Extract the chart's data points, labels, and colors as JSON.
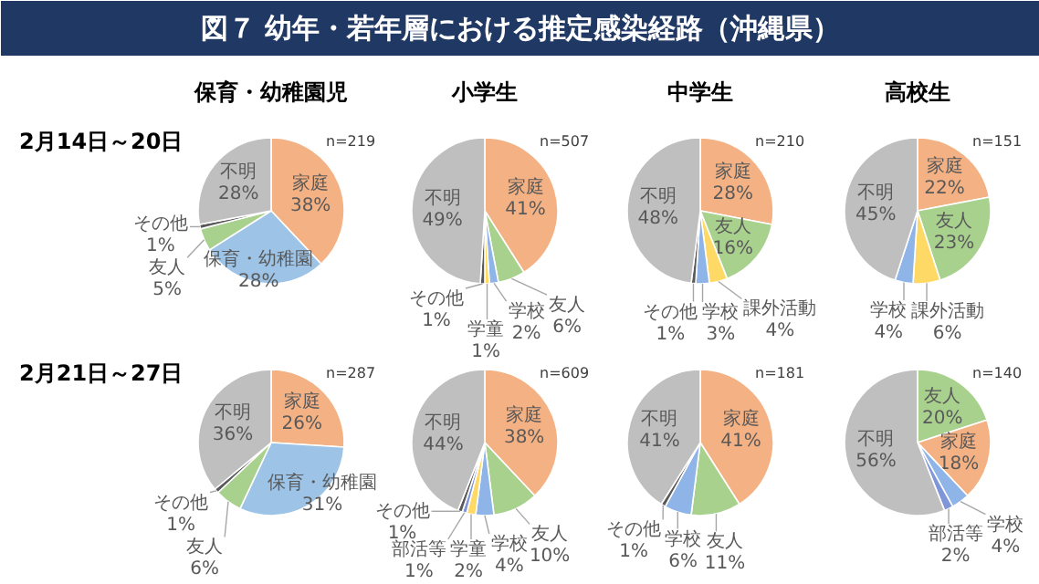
{
  "chart_data": [
    {
      "type": "other",
      "title": "図７ 幼年・若年層における推定感染経路（沖縄県）"
    },
    {
      "type": "pie",
      "title": "保育・幼稚園児",
      "subtitle": "2月14日～20日",
      "annotations": [
        "n=219"
      ],
      "categories": [
        "家庭",
        "保育・幼稚園",
        "友人",
        "その他",
        "不明"
      ],
      "values": [
        38,
        28,
        5,
        1,
        28
      ],
      "value_labels": [
        "38%",
        "28%",
        "5%",
        "1%",
        "28%"
      ],
      "colors": [
        "#f4b183",
        "#9dc3e6",
        "#a9d18e",
        "#595959",
        "#bfbfbf"
      ]
    },
    {
      "type": "pie",
      "title": "小学生",
      "annotations": [
        "n=507"
      ],
      "categories": [
        "家庭",
        "友人",
        "学校",
        "学童",
        "その他",
        "不明"
      ],
      "values": [
        41,
        6,
        2,
        1,
        1,
        49
      ],
      "value_labels": [
        "41%",
        "6%",
        "2%",
        "1%",
        "1%",
        "49%"
      ],
      "colors": [
        "#f4b183",
        "#a9d18e",
        "#8fb4e8",
        "#ffd966",
        "#595959",
        "#bfbfbf"
      ]
    },
    {
      "type": "pie",
      "title": "中学生",
      "annotations": [
        "n=210"
      ],
      "categories": [
        "家庭",
        "友人",
        "課外活動",
        "学校",
        "その他",
        "不明"
      ],
      "values": [
        28,
        16,
        4,
        3,
        1,
        48
      ],
      "value_labels": [
        "28%",
        "16%",
        "4%",
        "3%",
        "1%",
        "48%"
      ],
      "colors": [
        "#f4b183",
        "#a9d18e",
        "#ffd966",
        "#8fb4e8",
        "#595959",
        "#bfbfbf"
      ]
    },
    {
      "type": "pie",
      "title": "高校生",
      "annotations": [
        "n=151"
      ],
      "categories": [
        "家庭",
        "友人",
        "課外活動",
        "学校",
        "不明"
      ],
      "values": [
        22,
        23,
        6,
        4,
        45
      ],
      "value_labels": [
        "22%",
        "23%",
        "6%",
        "4%",
        "45%"
      ],
      "colors": [
        "#f4b183",
        "#a9d18e",
        "#ffd966",
        "#8fb4e8",
        "#bfbfbf"
      ]
    },
    {
      "type": "pie",
      "subtitle": "2月21日～27日",
      "annotations": [
        "n=287"
      ],
      "categories": [
        "家庭",
        "保育・幼稚園",
        "友人",
        "その他",
        "不明"
      ],
      "values": [
        26,
        31,
        6,
        1,
        36
      ],
      "value_labels": [
        "26%",
        "31%",
        "6%",
        "1%",
        "36%"
      ],
      "colors": [
        "#f4b183",
        "#9dc3e6",
        "#a9d18e",
        "#595959",
        "#bfbfbf"
      ]
    },
    {
      "type": "pie",
      "annotations": [
        "n=609"
      ],
      "categories": [
        "家庭",
        "友人",
        "学校",
        "学童",
        "部活等",
        "その他",
        "不明"
      ],
      "values": [
        38,
        10,
        4,
        2,
        1,
        1,
        44
      ],
      "value_labels": [
        "38%",
        "10%",
        "4%",
        "2%",
        "1%",
        "1%",
        "44%"
      ],
      "colors": [
        "#f4b183",
        "#a9d18e",
        "#8fb4e8",
        "#ffd966",
        "#7f96d8",
        "#595959",
        "#bfbfbf"
      ]
    },
    {
      "type": "pie",
      "annotations": [
        "n=181"
      ],
      "categories": [
        "家庭",
        "友人",
        "学校",
        "その他",
        "不明"
      ],
      "values": [
        41,
        11,
        6,
        1,
        41
      ],
      "value_labels": [
        "41%",
        "11%",
        "6%",
        "1%",
        "41%"
      ],
      "colors": [
        "#f4b183",
        "#a9d18e",
        "#8fb4e8",
        "#595959",
        "#bfbfbf"
      ]
    },
    {
      "type": "pie",
      "annotations": [
        "n=140"
      ],
      "categories": [
        "友人",
        "家庭",
        "学校",
        "部活等",
        "不明"
      ],
      "values": [
        20,
        18,
        4,
        2,
        56
      ],
      "value_labels": [
        "20%",
        "18%",
        "4%",
        "2%",
        "56%"
      ],
      "colors": [
        "#a9d18e",
        "#f4b183",
        "#8fb4e8",
        "#7f96d8",
        "#bfbfbf"
      ]
    }
  ]
}
